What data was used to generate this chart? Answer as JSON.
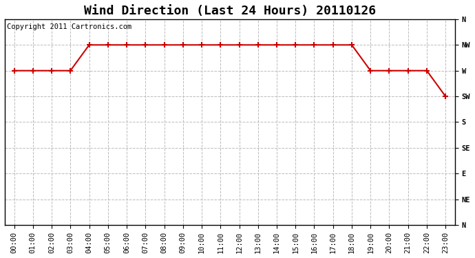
{
  "title": "Wind Direction (Last 24 Hours) 20110126",
  "copyright_text": "Copyright 2011 Cartronics.com",
  "line_color": "#cc0000",
  "marker": "+",
  "marker_size": 6,
  "marker_linewidth": 1.5,
  "line_width": 1.5,
  "background_color": "#ffffff",
  "plot_bg_color": "#ffffff",
  "grid_color": "#bbbbbb",
  "grid_style": "--",
  "ytick_labels": [
    "N",
    "NW",
    "W",
    "SW",
    "S",
    "SE",
    "E",
    "NE",
    "N"
  ],
  "ytick_values": [
    8,
    7,
    6,
    5,
    4,
    3,
    2,
    1,
    0
  ],
  "hours": [
    0,
    1,
    2,
    3,
    4,
    5,
    6,
    7,
    8,
    9,
    10,
    11,
    12,
    13,
    14,
    15,
    16,
    17,
    18,
    19,
    20,
    21,
    22,
    23
  ],
  "wind_values": [
    6,
    6,
    6,
    6,
    7,
    7,
    7,
    7,
    7,
    7,
    7,
    7,
    7,
    7,
    7,
    7,
    7,
    7,
    7,
    6,
    6,
    6,
    6,
    5
  ],
  "xlim": [
    -0.5,
    23.5
  ],
  "ylim": [
    0,
    8
  ],
  "title_fontsize": 13,
  "tick_fontsize": 7.5,
  "copyright_fontsize": 7.5
}
